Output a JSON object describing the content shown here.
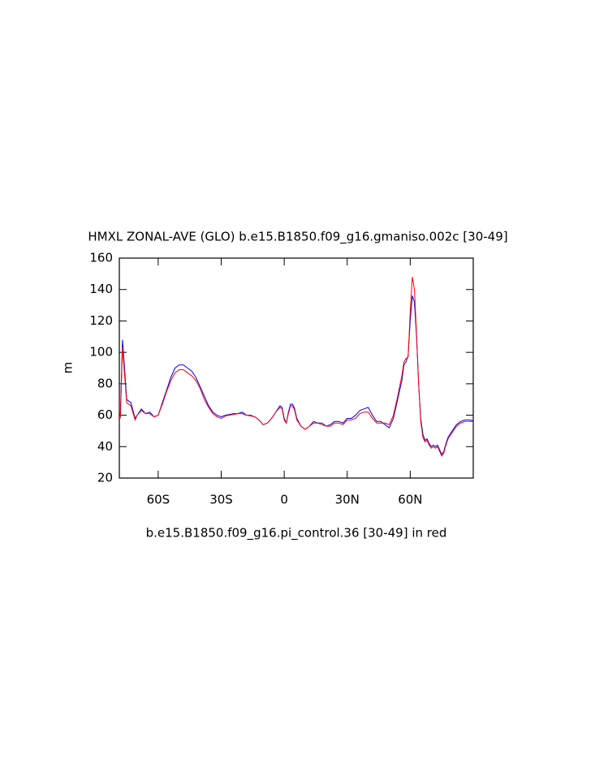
{
  "chart_data": {
    "type": "line",
    "title": "HMXL ZONAL-AVE (GLO) b.e15.B1850.f09_g16.gmaniso.002c [30-49]",
    "x_label": "b.e15.B1850.f09_g16.pi_control.36 [30-49] in red",
    "y_label": "m",
    "x": [
      -78,
      -77,
      -76,
      -75,
      -73,
      -71,
      -70,
      -68,
      -66,
      -64,
      -62,
      -60,
      -58,
      -56,
      -54,
      -52,
      -50,
      -48,
      -46,
      -44,
      -42,
      -40,
      -38,
      -36,
      -34,
      -32,
      -30,
      -28,
      -26,
      -24,
      -22,
      -20,
      -18,
      -16,
      -14,
      -12,
      -10,
      -8,
      -6,
      -4,
      -2,
      -1,
      0,
      1,
      2,
      3,
      4,
      5,
      6,
      8,
      10,
      12,
      14,
      16,
      18,
      20,
      22,
      24,
      26,
      28,
      30,
      32,
      34,
      36,
      38,
      40,
      42,
      44,
      46,
      48,
      50,
      52,
      54,
      56,
      57,
      58,
      59,
      60,
      61,
      62,
      63,
      64,
      65,
      66,
      67,
      68,
      69,
      70,
      71,
      72,
      73,
      74,
      75,
      76,
      77,
      78,
      80,
      82,
      84,
      86,
      88,
      90
    ],
    "series": [
      {
        "name": "b.e15.B1850.f09_g16.gmaniso.002c",
        "color": "#0000ff",
        "values": [
          60,
          108,
          90,
          70,
          68,
          58,
          60,
          64,
          61,
          62,
          59,
          60,
          68,
          76,
          84,
          90,
          92,
          92,
          90,
          88,
          84,
          78,
          72,
          66,
          62,
          60,
          59,
          60,
          60.5,
          61,
          61,
          62,
          60,
          60,
          59,
          57,
          54,
          55,
          58,
          62,
          66,
          65,
          58,
          55,
          62,
          67,
          67,
          64,
          58,
          53,
          51,
          53,
          56,
          55,
          55,
          53,
          54,
          56,
          56,
          55,
          58,
          58,
          60,
          63,
          64,
          65,
          60,
          56,
          56,
          54,
          52,
          58,
          70,
          82,
          92,
          94,
          98,
          120,
          136,
          132,
          110,
          80,
          58,
          48,
          44,
          45,
          42,
          40,
          41,
          40,
          41,
          38,
          35,
          37,
          42,
          46,
          50,
          54,
          56,
          57,
          57,
          56.5
        ]
      },
      {
        "name": "b.e15.B1850.f09_g16.pi_control.36",
        "color": "#ff0000",
        "values": [
          58,
          103,
          86,
          68,
          66,
          57,
          60,
          63,
          61,
          61,
          59,
          60,
          67,
          75,
          82,
          87,
          89,
          89,
          87,
          85,
          82,
          77,
          70,
          65,
          61,
          59,
          58,
          59.5,
          60,
          60.5,
          61,
          61,
          60,
          59.5,
          59,
          57,
          54,
          55,
          58,
          62,
          65,
          64,
          57,
          55,
          61,
          66,
          66,
          63,
          57,
          53,
          51,
          53,
          55,
          55,
          54,
          53,
          53,
          55,
          55,
          54,
          57,
          57,
          58,
          61,
          62,
          62,
          58,
          55,
          55,
          55,
          54,
          60,
          72,
          85,
          94,
          96,
          97,
          126,
          148,
          140,
          112,
          80,
          56,
          46,
          43,
          44,
          41,
          39,
          40,
          39,
          40,
          37,
          34,
          36,
          41,
          45,
          49,
          53,
          55,
          56,
          56,
          56
        ]
      }
    ],
    "xlim": [
      -78.5,
      90
    ],
    "xticks": [
      {
        "value": -60,
        "label": "60S"
      },
      {
        "value": -30,
        "label": "30S"
      },
      0,
      {
        "value": 30,
        "label": "30N"
      },
      {
        "value": 60,
        "label": "60N"
      }
    ],
    "ylim": [
      20,
      160
    ],
    "yticks": [
      20,
      40,
      60,
      80,
      100,
      120,
      140,
      160
    ]
  }
}
